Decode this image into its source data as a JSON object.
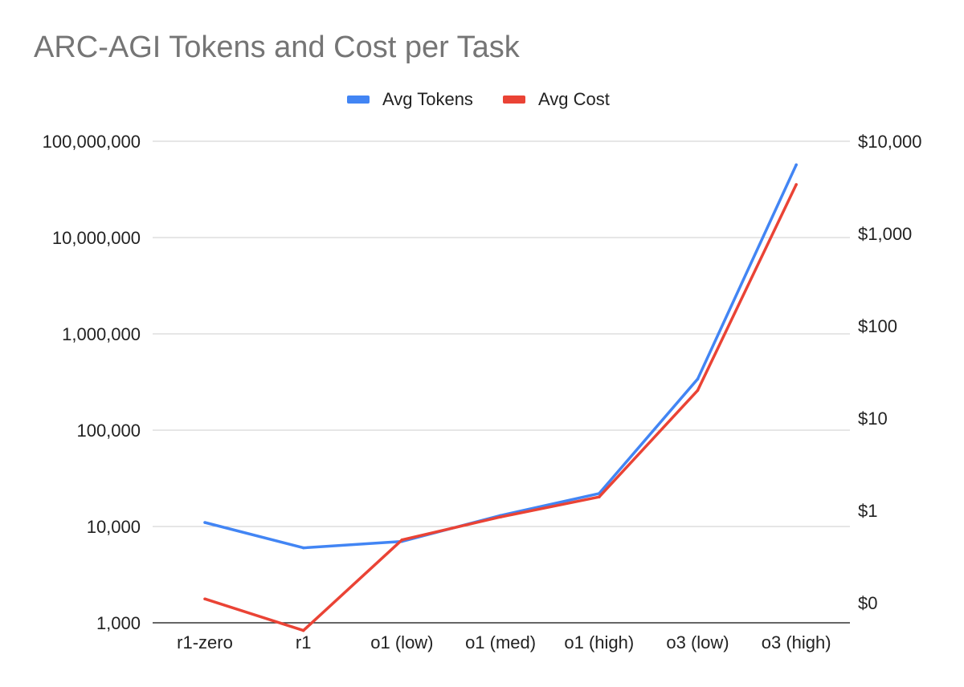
{
  "chart_data": {
    "type": "line",
    "title": "ARC-AGI Tokens and Cost per Task",
    "categories": [
      "r1-zero",
      "r1",
      "o1 (low)",
      "o1 (med)",
      "o1 (high)",
      "o3 (low)",
      "o3 (high)"
    ],
    "series": [
      {
        "name": "Avg Tokens",
        "axis": "left",
        "color": "#4285f4",
        "values": [
          11000,
          6000,
          7000,
          13000,
          22000,
          340000,
          57000000
        ]
      },
      {
        "name": "Avg Cost",
        "axis": "right",
        "color": "#ea4335",
        "values": [
          0.11,
          0.05,
          0.48,
          0.85,
          1.4,
          20,
          3400
        ]
      }
    ],
    "y_left": {
      "scale": "log",
      "range": [
        1000,
        100000000
      ],
      "ticks": [
        1000,
        10000,
        100000,
        1000000,
        10000000,
        100000000
      ],
      "tick_labels": [
        "1,000",
        "10,000",
        "100,000",
        "1,000,000",
        "10,000,000",
        "100,000,000"
      ]
    },
    "y_right": {
      "scale": "log",
      "range": [
        0.05,
        10000
      ],
      "ticks": [
        0.1,
        1,
        10,
        100,
        1000,
        10000
      ],
      "tick_labels": [
        "$0",
        "$1",
        "$10",
        "$100",
        "$1,000",
        "$10,000"
      ]
    },
    "grid": true,
    "legend_position": "top-center"
  }
}
